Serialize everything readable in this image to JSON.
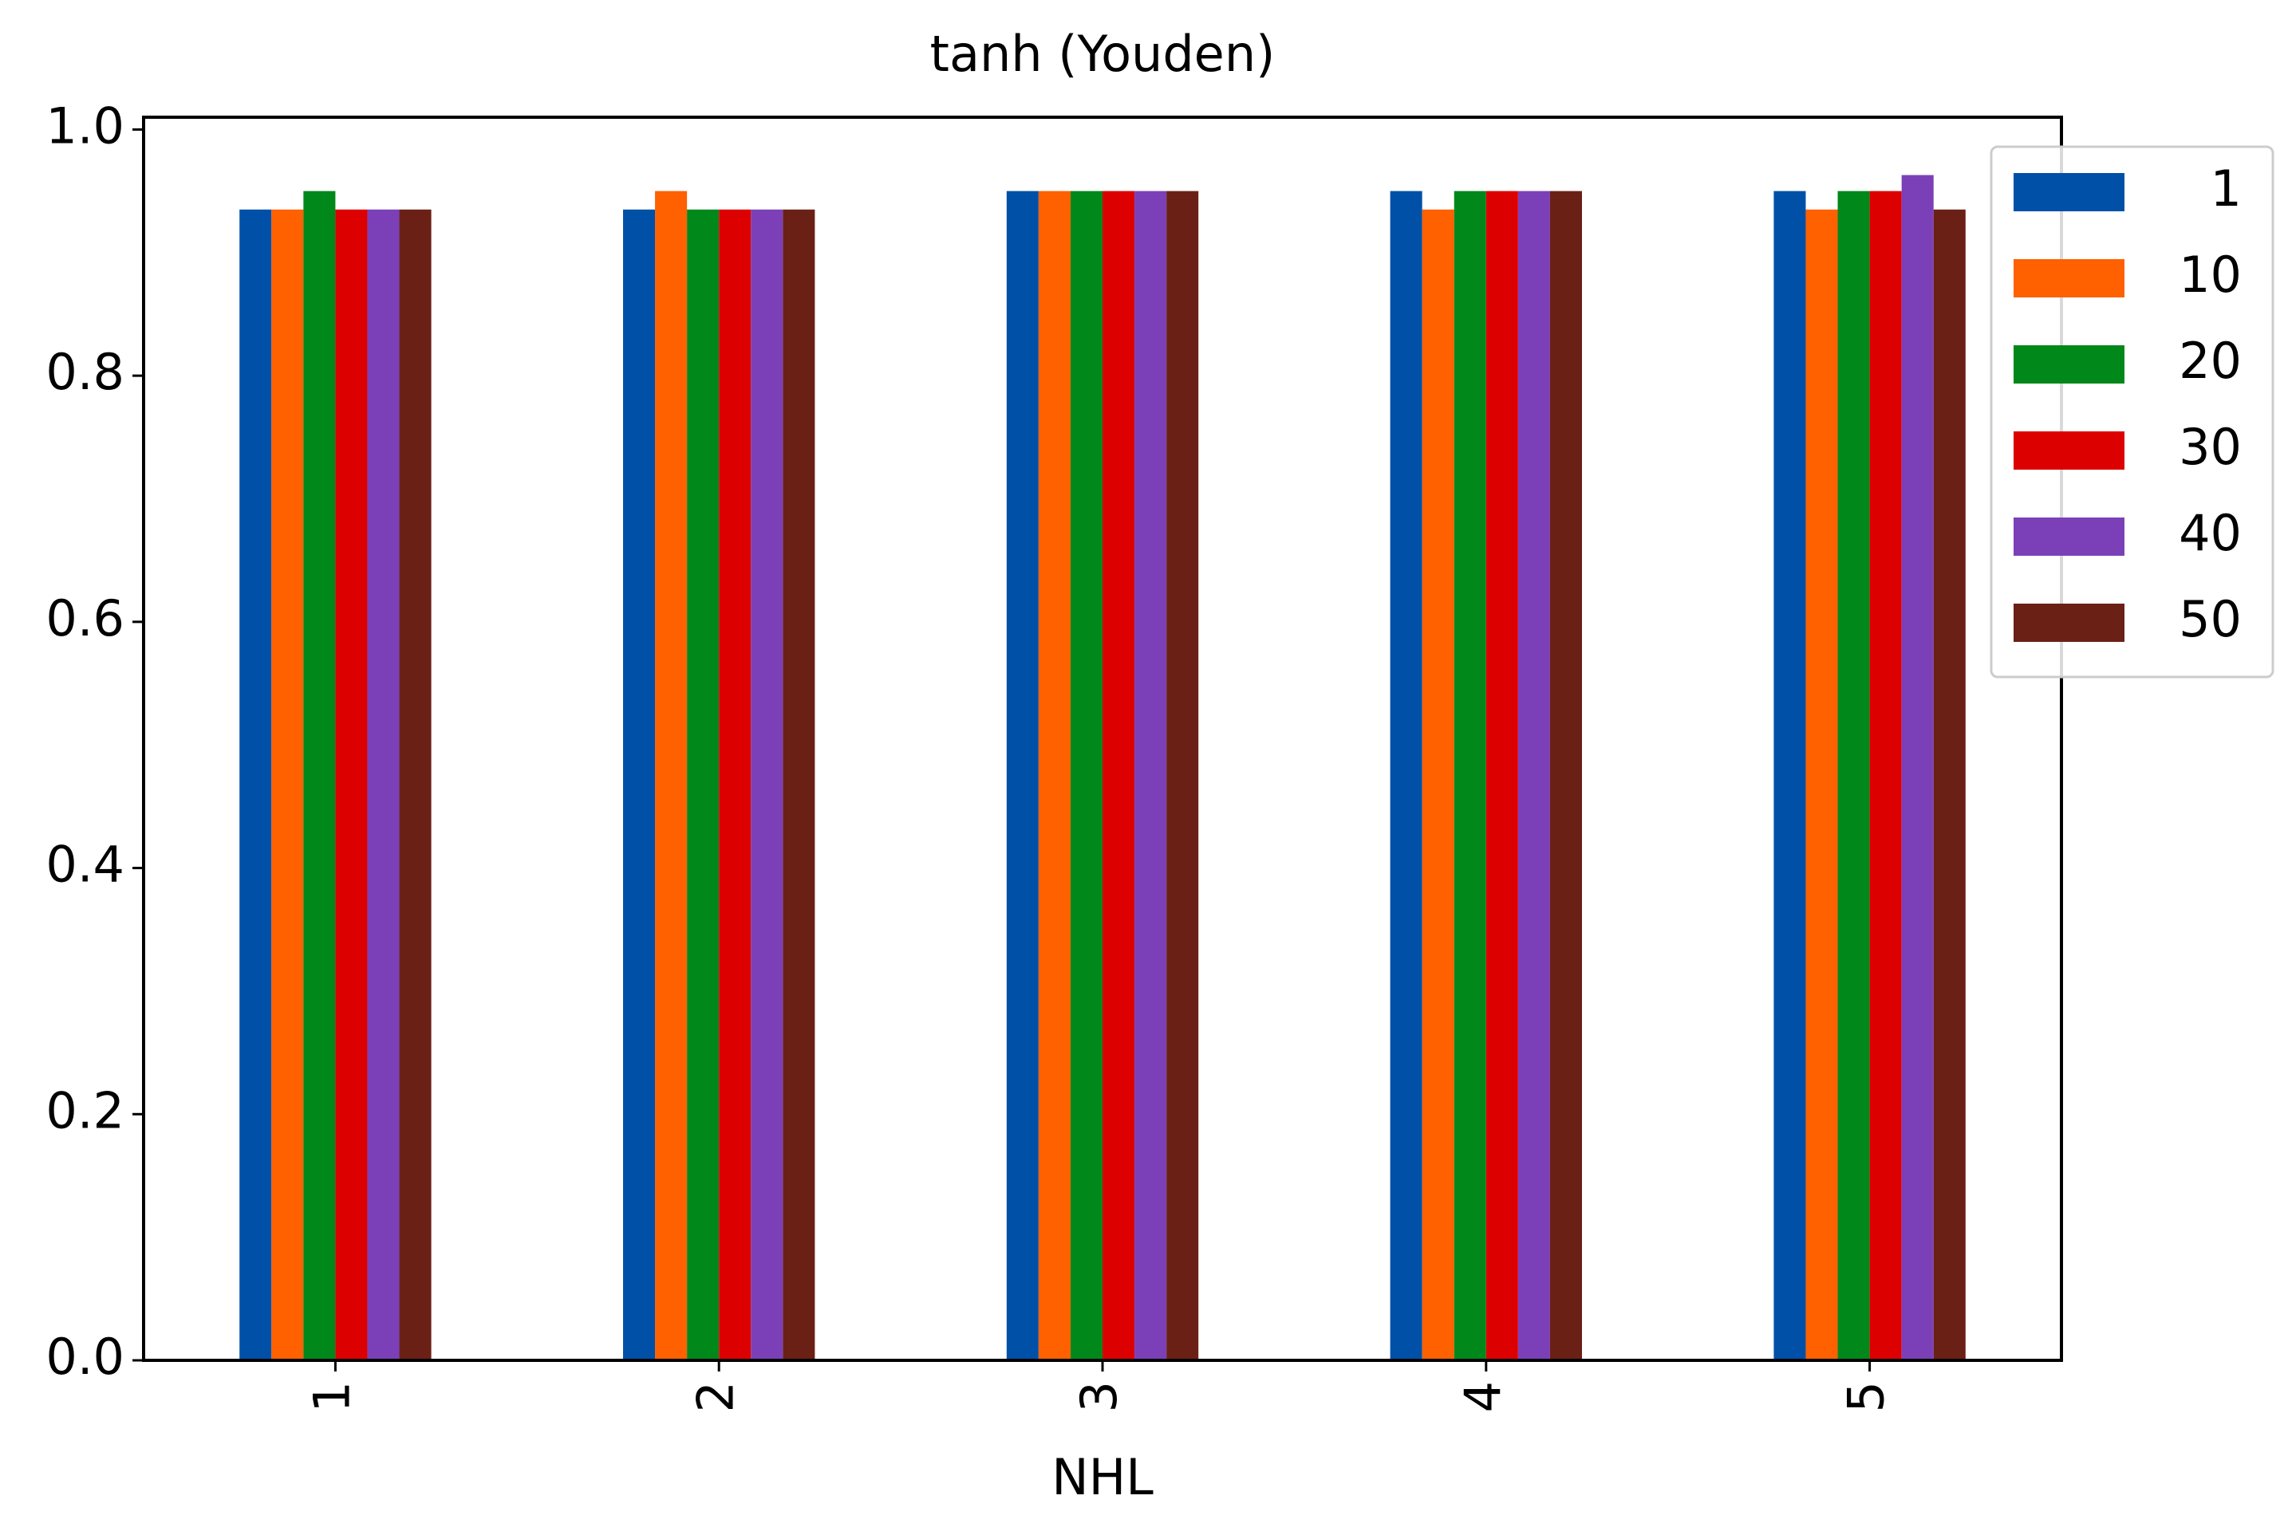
{
  "chart_data": {
    "type": "bar",
    "title": "tanh (Youden)",
    "x_label": "NHL",
    "categories": [
      "1",
      "2",
      "3",
      "4",
      "5"
    ],
    "series": [
      {
        "name": "1",
        "color": "#0050a8",
        "values": [
          0.935,
          0.935,
          0.95,
          0.95,
          0.95
        ]
      },
      {
        "name": "10",
        "color": "#ff6000",
        "values": [
          0.935,
          0.95,
          0.95,
          0.935,
          0.935
        ]
      },
      {
        "name": "20",
        "color": "#00881a",
        "values": [
          0.95,
          0.935,
          0.95,
          0.95,
          0.95
        ]
      },
      {
        "name": "30",
        "color": "#dd0000",
        "values": [
          0.935,
          0.935,
          0.95,
          0.95,
          0.95
        ]
      },
      {
        "name": "40",
        "color": "#7b40b8",
        "values": [
          0.935,
          0.935,
          0.95,
          0.95,
          0.963
        ]
      },
      {
        "name": "50",
        "color": "#6b2016",
        "values": [
          0.935,
          0.935,
          0.95,
          0.95,
          0.935
        ]
      }
    ],
    "ylim": [
      0,
      1.01
    ],
    "yticks": [
      {
        "value": 0,
        "label": "0.0"
      },
      0.2,
      0.4,
      0.6,
      0.8,
      {
        "value": 1,
        "label": "1.0"
      }
    ],
    "legend": "upper right"
  }
}
